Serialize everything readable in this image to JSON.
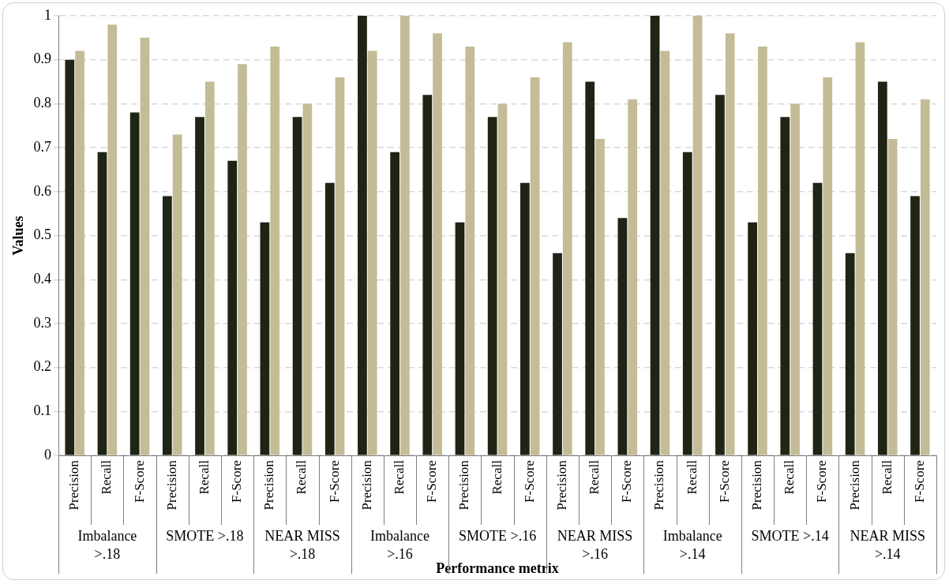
{
  "chart_data": {
    "type": "bar",
    "xlabel": "Performance metrix",
    "ylabel": "Values",
    "categories": [
      "Precision",
      "Recall",
      "F-Score",
      "Precision",
      "Recall",
      "F-Score",
      "Precision",
      "Recall",
      "F-Score",
      "Precision",
      "Recall",
      "F-Score",
      "Precision",
      "Recall",
      "F-Score",
      "Precision",
      "Recall",
      "F-Score",
      "Precision",
      "Recall",
      "F-Score",
      "Precision",
      "Recall",
      "F-Score",
      "Precision",
      "Recall",
      "F-Score"
    ],
    "annotations": [
      "Imbalance >.18",
      "SMOTE >.18",
      "NEAR MISS >.18",
      "Imbalance >.16",
      "SMOTE >.16",
      "NEAR MISS >.16",
      "Imbalance >.14",
      "SMOTE >.14",
      "NEAR MISS >.14"
    ],
    "series": [
      {
        "color": "#1f2414",
        "values": [
          0.9,
          0.69,
          0.78,
          0.59,
          0.77,
          0.67,
          0.53,
          0.77,
          0.62,
          1.0,
          0.69,
          0.82,
          0.53,
          0.77,
          0.62,
          0.46,
          0.85,
          0.54,
          1.0,
          0.69,
          0.82,
          0.53,
          0.77,
          0.62,
          0.46,
          0.85,
          0.59
        ]
      },
      {
        "color": "#c4bc96",
        "values": [
          0.92,
          0.98,
          0.95,
          0.73,
          0.85,
          0.89,
          0.93,
          0.8,
          0.86,
          0.92,
          1.0,
          0.96,
          0.93,
          0.8,
          0.86,
          0.94,
          0.72,
          0.81,
          0.92,
          1.0,
          0.96,
          0.93,
          0.8,
          0.86,
          0.94,
          0.72,
          0.81
        ]
      }
    ],
    "ylim": [
      0,
      1
    ],
    "yticks": [
      0,
      0.1,
      0.2,
      0.3,
      0.4,
      0.5,
      0.6,
      0.7,
      0.8,
      0.9,
      1
    ],
    "grid": "y",
    "legend": false
  }
}
